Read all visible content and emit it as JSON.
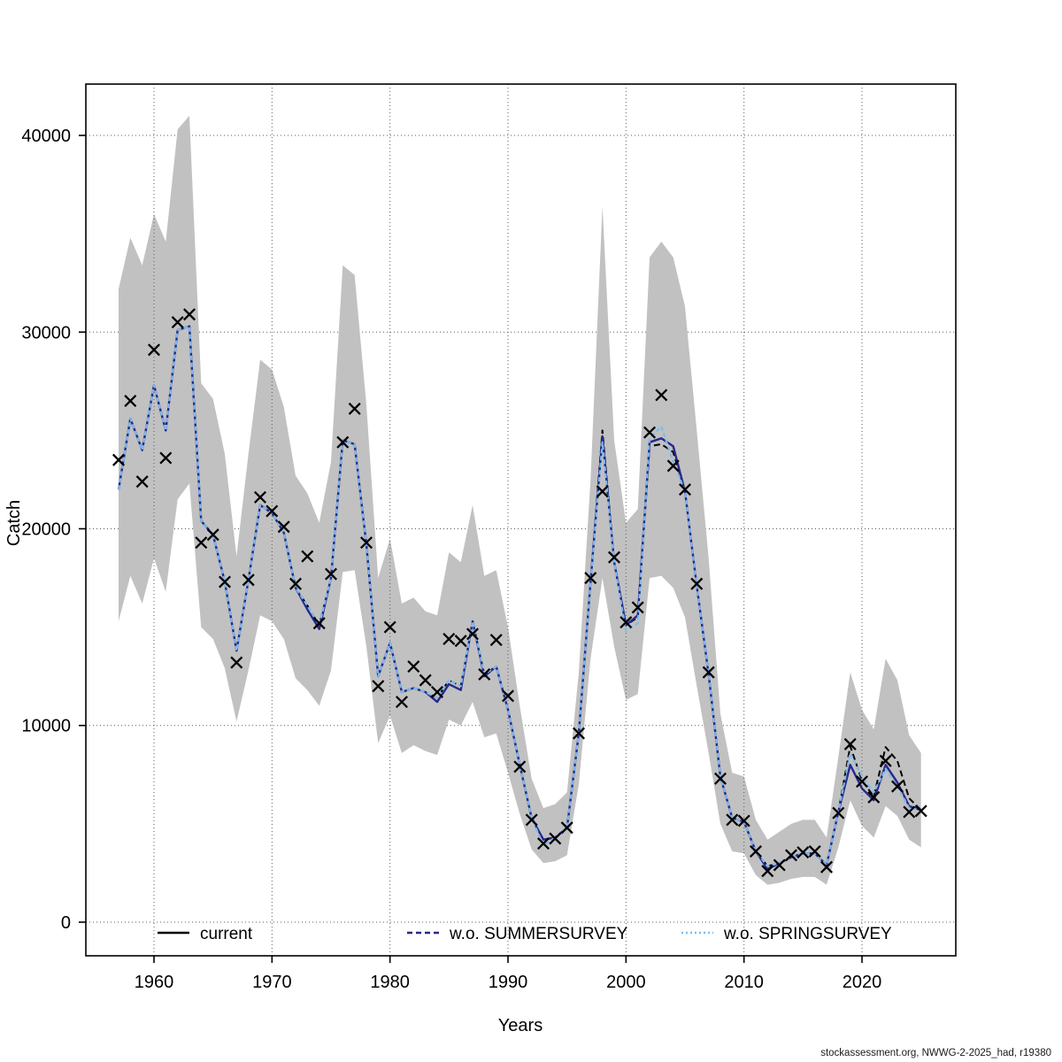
{
  "figure": {
    "xlabel": "Years",
    "ylabel": "Catch",
    "footer": "stockassessment.org, NWWG-2-2025_had, r19380"
  },
  "chart_data": {
    "type": "line",
    "title": "",
    "xlabel": "Years",
    "ylabel": "Catch",
    "grid": true,
    "legend_position": "bottom-inside",
    "x_ticks": [
      1960,
      1970,
      1980,
      1990,
      2000,
      2010,
      2020
    ],
    "y_ticks": [
      0,
      10000,
      20000,
      30000,
      40000
    ],
    "xlim": [
      1954.225,
      2027.95
    ],
    "ylim": [
      -1710,
      42610
    ],
    "band_color": "#c1c1c1",
    "grid_color": "#5a5a5a",
    "marker": "x",
    "marker_color": "#000000",
    "years": [
      1957,
      1958,
      1959,
      1960,
      1961,
      1962,
      1963,
      1964,
      1965,
      1966,
      1967,
      1968,
      1969,
      1970,
      1971,
      1972,
      1973,
      1974,
      1975,
      1976,
      1977,
      1978,
      1979,
      1980,
      1981,
      1982,
      1983,
      1984,
      1985,
      1986,
      1987,
      1988,
      1989,
      1990,
      1991,
      1992,
      1993,
      1994,
      1995,
      1996,
      1997,
      1998,
      1999,
      2000,
      2001,
      2002,
      2003,
      2004,
      2005,
      2006,
      2007,
      2008,
      2009,
      2010,
      2011,
      2012,
      2013,
      2014,
      2015,
      2016,
      2017,
      2018,
      2019,
      2020,
      2021,
      2022,
      2023,
      2024,
      2025
    ],
    "observed_catch": [
      23500,
      26500,
      22400,
      29100,
      23600,
      30500,
      30900,
      19300,
      19700,
      17300,
      13200,
      17400,
      21600,
      20900,
      20100,
      17200,
      18600,
      15200,
      17700,
      24400,
      26100,
      19300,
      12000,
      15000,
      11200,
      13000,
      12300,
      11700,
      14400,
      14300,
      14650,
      12600,
      14350,
      11500,
      7900,
      5200,
      4000,
      4250,
      4800,
      9600,
      17500,
      21900,
      18550,
      15250,
      16000,
      24900,
      26800,
      23200,
      22000,
      17200,
      12700,
      7300,
      5200,
      5150,
      3600,
      2600,
      2900,
      3400,
      3550,
      3600,
      2800,
      5550,
      9050,
      7150,
      6350,
      8200,
      6900,
      5600,
      5650
    ],
    "series": [
      {
        "name": "current",
        "color": "#000000",
        "width": 2,
        "dash": "7 4",
        "legend_dash": "",
        "values": [
          22000,
          25600,
          24000,
          27300,
          25000,
          30100,
          30300,
          20400,
          19700,
          17300,
          13800,
          17400,
          21200,
          20800,
          19800,
          17000,
          16100,
          15100,
          17500,
          24500,
          24300,
          19200,
          12500,
          14200,
          11700,
          11900,
          11700,
          11400,
          12300,
          12000,
          15300,
          12600,
          13000,
          10800,
          8000,
          5300,
          4200,
          4300,
          4800,
          9600,
          17300,
          25000,
          18300,
          15100,
          15500,
          24200,
          24300,
          23900,
          21900,
          17100,
          12600,
          7400,
          5300,
          5100,
          3600,
          2850,
          3000,
          3300,
          3500,
          3500,
          2900,
          5600,
          8950,
          7200,
          6400,
          8900,
          8200,
          6300,
          5700
        ]
      },
      {
        "name": "w.o. SUMMERSURVEY",
        "color": "#28288c",
        "width": 2.4,
        "dash": "",
        "legend_dash": "6 4",
        "values": [
          22000,
          25600,
          24000,
          27300,
          25000,
          30100,
          30300,
          20400,
          19700,
          17300,
          13800,
          17400,
          21200,
          20800,
          19800,
          17000,
          15900,
          14900,
          17500,
          24500,
          24300,
          19200,
          12500,
          14200,
          11700,
          11900,
          11700,
          11200,
          12100,
          11800,
          15300,
          12500,
          13000,
          10800,
          8000,
          5300,
          4200,
          4300,
          4800,
          9600,
          17300,
          24700,
          18300,
          15100,
          15600,
          24400,
          24600,
          24200,
          21900,
          17100,
          12600,
          7400,
          5300,
          5100,
          3600,
          2700,
          3000,
          3300,
          3500,
          3500,
          2900,
          5600,
          8000,
          6800,
          6200,
          8000,
          7100,
          5900,
          5700
        ]
      },
      {
        "name": "w.o. SPRINGSURVEY",
        "color": "#7dbcea",
        "width": 2.2,
        "dash": "5 3",
        "legend_dash": "2 3",
        "values": [
          22000,
          25600,
          24000,
          27300,
          25000,
          30100,
          30300,
          20400,
          19700,
          17300,
          13800,
          17400,
          21200,
          20800,
          19800,
          17000,
          16100,
          15100,
          17500,
          24500,
          24300,
          19200,
          12500,
          14200,
          11700,
          11900,
          11700,
          11400,
          12300,
          12000,
          15300,
          12600,
          13000,
          10800,
          8000,
          5300,
          3900,
          4300,
          4800,
          9600,
          17300,
          24400,
          18300,
          14800,
          15200,
          24600,
          25200,
          23400,
          21900,
          17100,
          12600,
          7400,
          5300,
          5100,
          3600,
          2850,
          3000,
          3300,
          3500,
          3500,
          2900,
          5600,
          8600,
          7400,
          6600,
          7800,
          6900,
          5800,
          5700
        ]
      }
    ],
    "band": {
      "upper": [
        32200,
        34800,
        33400,
        36000,
        34600,
        40300,
        41000,
        27400,
        26600,
        23800,
        18600,
        23800,
        28600,
        28100,
        26200,
        22700,
        21800,
        20300,
        23400,
        33400,
        32900,
        26300,
        17500,
        19500,
        16200,
        16500,
        15800,
        15600,
        18800,
        18300,
        21200,
        17600,
        17900,
        15000,
        11000,
        7300,
        5800,
        6000,
        6600,
        12700,
        22500,
        36400,
        24500,
        20300,
        21000,
        33800,
        34600,
        33800,
        31300,
        25000,
        18500,
        10600,
        7600,
        7400,
        5200,
        4200,
        4600,
        5000,
        5200,
        5200,
        4300,
        8400,
        12700,
        10800,
        9800,
        13400,
        12300,
        9500,
        8600
      ],
      "lower": [
        15300,
        17600,
        16200,
        18500,
        16800,
        21500,
        22300,
        15000,
        14400,
        12900,
        10200,
        12800,
        15600,
        15300,
        14400,
        12400,
        11800,
        11000,
        12800,
        17800,
        17900,
        14000,
        9100,
        10500,
        8600,
        9000,
        8700,
        8500,
        10300,
        10000,
        11200,
        9400,
        9600,
        7600,
        5500,
        3700,
        3000,
        3100,
        3400,
        7000,
        13400,
        17500,
        14000,
        11300,
        11600,
        17500,
        17600,
        17000,
        15500,
        12000,
        8600,
        5000,
        3600,
        3500,
        2400,
        1900,
        2000,
        2200,
        2300,
        2300,
        1900,
        3800,
        6200,
        4900,
        4300,
        5900,
        5400,
        4200,
        3800
      ]
    }
  }
}
